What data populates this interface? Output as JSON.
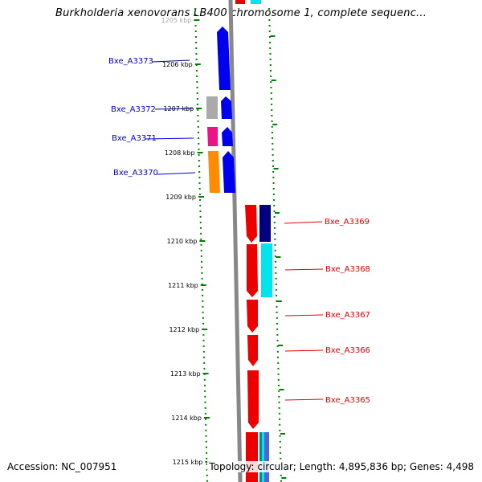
{
  "title": "Burkholderia xenovorans LB400 chromosome 1, complete sequenc...",
  "footer": {
    "accession": "Accession: NC_007951",
    "summary": "Topology: circular; Length: 4,895,836 bp; Genes: 4,498"
  },
  "scale": {
    "ticks": [
      "1205 kbp",
      "1206 kbp",
      "1207 kbp",
      "1208 kbp",
      "1209 kbp",
      "1210 kbp",
      "1211 kbp",
      "1212 kbp",
      "1213 kbp",
      "1214 kbp",
      "1215 kbp"
    ]
  },
  "colors": {
    "blue_gene": "#0000ee",
    "red_gene": "#ee0000",
    "navy": "#000080",
    "cyan": "#00e5ee",
    "magenta": "#ee1289",
    "orange": "#ff8c00",
    "gray": "#aaaaaa",
    "tick_green": "#008000",
    "backbone": "#888888"
  },
  "genes_left": [
    {
      "label": "Bxe_A3373"
    },
    {
      "label": "Bxe_A3372"
    },
    {
      "label": "Bxe_A3371"
    },
    {
      "label": "Bxe_A3370"
    }
  ],
  "genes_right": [
    {
      "label": "Bxe_A3369"
    },
    {
      "label": "Bxe_A3368"
    },
    {
      "label": "Bxe_A3367"
    },
    {
      "label": "Bxe_A3366"
    },
    {
      "label": "Bxe_A3365"
    }
  ]
}
